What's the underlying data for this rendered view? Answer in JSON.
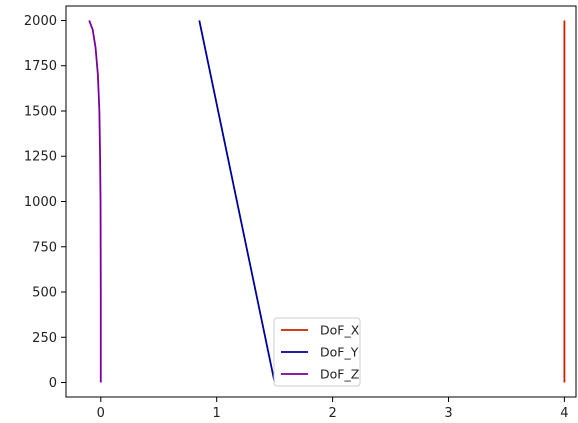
{
  "chart_data": {
    "type": "line",
    "title": "",
    "xlabel": "",
    "ylabel": "",
    "xlim": [
      -0.3,
      4.1
    ],
    "ylim": [
      -80,
      2080
    ],
    "grid": false,
    "legend_position": "bottom-center",
    "x_ticks": [
      {
        "value": 0,
        "label": "0"
      },
      {
        "value": 1,
        "label": "1"
      },
      {
        "value": 2,
        "label": "2"
      },
      {
        "value": 3,
        "label": "3"
      },
      {
        "value": 4,
        "label": "4"
      }
    ],
    "y_ticks": [
      {
        "value": 0,
        "label": "0"
      },
      {
        "value": 250,
        "label": "250"
      },
      {
        "value": 500,
        "label": "500"
      },
      {
        "value": 750,
        "label": "750"
      },
      {
        "value": 1000,
        "label": "1000"
      },
      {
        "value": 1250,
        "label": "1250"
      },
      {
        "value": 1500,
        "label": "1500"
      },
      {
        "value": 1750,
        "label": "1750"
      },
      {
        "value": 2000,
        "label": "2000"
      }
    ],
    "series": [
      {
        "name": "DoF_X",
        "color": "#cc2200",
        "points": [
          [
            4.0,
            0
          ],
          [
            4.0,
            2000
          ]
        ]
      },
      {
        "name": "DoF_Y",
        "color": "#000099",
        "points": [
          [
            1.5,
            0
          ],
          [
            0.85,
            2000
          ]
        ]
      },
      {
        "name": "DoF_Z",
        "color": "#7a0099",
        "points": [
          [
            0.0,
            0
          ],
          [
            0.0,
            500
          ],
          [
            -0.002,
            1000
          ],
          [
            -0.006,
            1250
          ],
          [
            -0.012,
            1500
          ],
          [
            -0.025,
            1700
          ],
          [
            -0.045,
            1850
          ],
          [
            -0.07,
            1950
          ],
          [
            -0.1,
            2000
          ]
        ]
      }
    ]
  }
}
